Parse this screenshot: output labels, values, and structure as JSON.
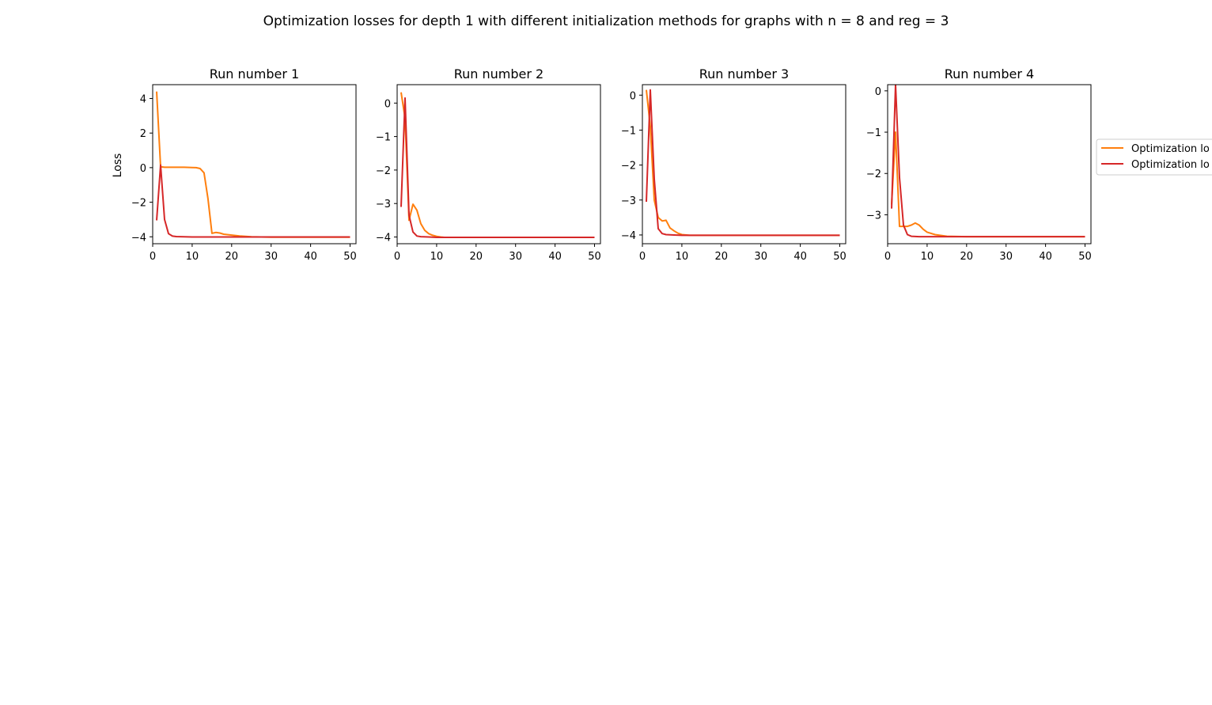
{
  "figure": {
    "title": "Optimization losses for depth 1 with different initialization methods for graphs with n = 8 and reg = 3",
    "ylabel": "Loss",
    "legend": {
      "placement": "right, outside plots (partially clipped)",
      "entries": [
        {
          "label": "Optimization lo",
          "color": "#ff7f0e"
        },
        {
          "label": "Optimization lo",
          "color": "#d62728"
        }
      ]
    }
  },
  "chart_data": [
    {
      "type": "line",
      "title": "Run number 1",
      "xlabel": "",
      "ylabel": "Loss",
      "xlim": [
        0,
        51.5
      ],
      "ylim": [
        -4.4,
        4.8
      ],
      "xticks": [
        0,
        10,
        20,
        30,
        40,
        50
      ],
      "yticks": [
        -4,
        -2,
        0,
        2,
        4
      ],
      "grid": false,
      "series": [
        {
          "color": "#ff7f0e",
          "x": [
            1,
            2,
            3,
            5,
            8,
            10,
            11,
            12,
            13,
            14,
            15,
            16,
            17,
            18,
            20,
            22,
            25,
            30,
            40,
            50
          ],
          "y": [
            4.4,
            0.05,
            0.02,
            0.02,
            0.02,
            0.01,
            0.0,
            -0.05,
            -0.3,
            -1.8,
            -3.8,
            -3.75,
            -3.78,
            -3.85,
            -3.9,
            -3.95,
            -4.0,
            -4.02,
            -4.02,
            -4.02
          ]
        },
        {
          "color": "#d62728",
          "x": [
            1,
            2,
            3,
            4,
            5,
            6,
            8,
            10,
            20,
            30,
            40,
            50
          ],
          "y": [
            -3.05,
            0.15,
            -3.0,
            -3.82,
            -3.96,
            -3.99,
            -4.0,
            -4.01,
            -4.01,
            -4.01,
            -4.01,
            -4.01
          ]
        }
      ]
    },
    {
      "type": "line",
      "title": "Run number 2",
      "xlim": [
        0,
        51.5
      ],
      "ylim": [
        -4.2,
        0.55
      ],
      "xticks": [
        0,
        10,
        20,
        30,
        40,
        50
      ],
      "yticks": [
        -4,
        -3,
        -2,
        -1,
        0
      ],
      "grid": false,
      "series": [
        {
          "color": "#ff7f0e",
          "x": [
            1,
            2,
            3,
            4,
            5,
            6,
            7,
            8,
            9,
            10,
            11,
            12,
            15,
            20,
            30,
            40,
            50
          ],
          "y": [
            0.32,
            -0.45,
            -3.5,
            -3.02,
            -3.2,
            -3.6,
            -3.8,
            -3.9,
            -3.95,
            -3.98,
            -4.0,
            -4.01,
            -4.01,
            -4.01,
            -4.01,
            -4.01,
            -4.01
          ]
        },
        {
          "color": "#d62728",
          "x": [
            1,
            2,
            3,
            4,
            5,
            6,
            8,
            10,
            20,
            30,
            40,
            50
          ],
          "y": [
            -3.1,
            0.15,
            -3.35,
            -3.85,
            -3.97,
            -3.99,
            -4.0,
            -4.01,
            -4.01,
            -4.01,
            -4.01,
            -4.01
          ]
        }
      ]
    },
    {
      "type": "line",
      "title": "Run number 3",
      "xlim": [
        0,
        51.5
      ],
      "ylim": [
        -4.25,
        0.3
      ],
      "xticks": [
        0,
        10,
        20,
        30,
        40,
        50
      ],
      "yticks": [
        -4,
        -3,
        -2,
        -1,
        0
      ],
      "grid": false,
      "series": [
        {
          "color": "#ff7f0e",
          "x": [
            1,
            2,
            3,
            4,
            5,
            6,
            7,
            8,
            9,
            10,
            12,
            15,
            20,
            30,
            40,
            50
          ],
          "y": [
            0.15,
            -0.9,
            -3.0,
            -3.5,
            -3.6,
            -3.58,
            -3.8,
            -3.88,
            -3.95,
            -3.99,
            -4.01,
            -4.01,
            -4.01,
            -4.01,
            -4.01,
            -4.01
          ]
        },
        {
          "color": "#d62728",
          "x": [
            1,
            2,
            3,
            4,
            5,
            6,
            8,
            10,
            20,
            30,
            40,
            50
          ],
          "y": [
            -3.05,
            0.15,
            -2.4,
            -3.82,
            -3.96,
            -3.99,
            -4.0,
            -4.01,
            -4.01,
            -4.01,
            -4.01,
            -4.01
          ]
        }
      ]
    },
    {
      "type": "line",
      "title": "Run number 4",
      "xlim": [
        0,
        51.5
      ],
      "ylim": [
        -3.7,
        0.15
      ],
      "xticks": [
        0,
        10,
        20,
        30,
        40,
        50
      ],
      "yticks": [
        -3,
        -2,
        -1,
        0
      ],
      "grid": false,
      "series": [
        {
          "color": "#ff7f0e",
          "x": [
            1,
            2,
            3,
            4,
            5,
            6,
            7,
            8,
            9,
            10,
            12,
            15,
            20,
            30,
            40,
            50
          ],
          "y": [
            -2.75,
            -1.0,
            -3.28,
            -3.28,
            -3.28,
            -3.25,
            -3.2,
            -3.25,
            -3.35,
            -3.42,
            -3.48,
            -3.52,
            -3.53,
            -3.53,
            -3.53,
            -3.53
          ]
        },
        {
          "color": "#d62728",
          "x": [
            1,
            2,
            3,
            4,
            5,
            6,
            8,
            10,
            20,
            30,
            40,
            50
          ],
          "y": [
            -2.85,
            0.15,
            -2.1,
            -3.25,
            -3.48,
            -3.52,
            -3.53,
            -3.53,
            -3.53,
            -3.53,
            -3.53,
            -3.53
          ]
        }
      ]
    }
  ]
}
